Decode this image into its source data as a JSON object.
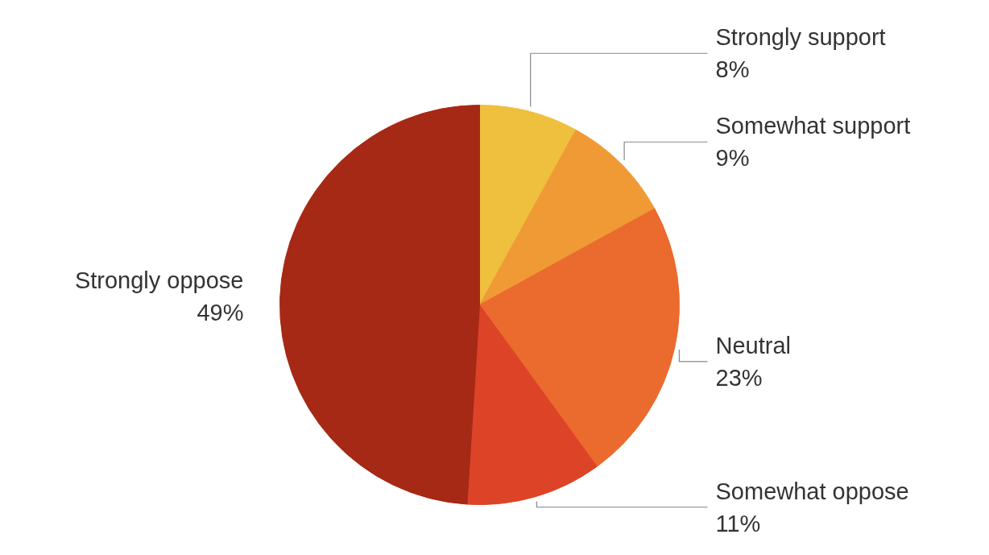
{
  "chart_data": {
    "type": "pie",
    "categories": [
      "Strongly support",
      "Somewhat support",
      "Neutral",
      "Somewhat oppose",
      "Strongly oppose"
    ],
    "values": [
      8,
      9,
      23,
      11,
      49
    ],
    "value_labels": [
      "8%",
      "9%",
      "23%",
      "11%",
      "49%"
    ],
    "colors": [
      "#efc03d",
      "#f09a35",
      "#eb6a2e",
      "#dd4327",
      "#a52915"
    ]
  }
}
